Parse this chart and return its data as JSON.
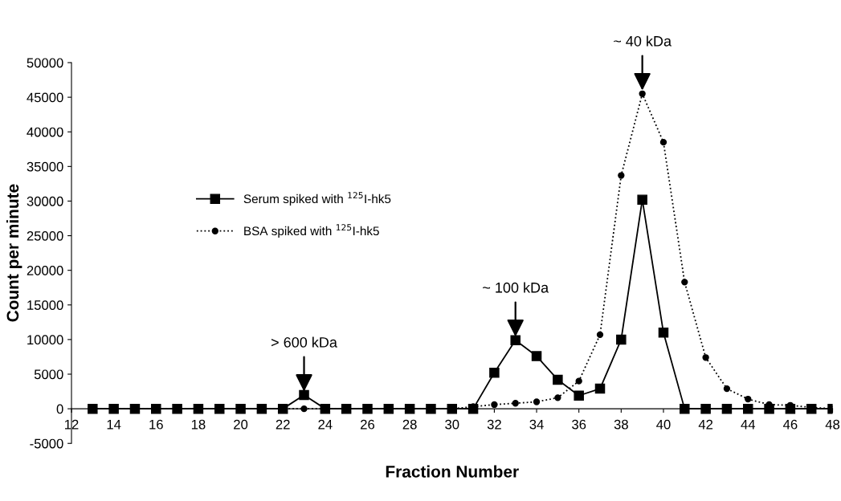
{
  "chart_data": {
    "type": "line",
    "xlabel": "Fraction Number",
    "ylabel": "Count per minute",
    "x": [
      13,
      14,
      15,
      16,
      17,
      18,
      19,
      20,
      21,
      22,
      23,
      24,
      25,
      26,
      27,
      28,
      29,
      30,
      31,
      32,
      33,
      34,
      35,
      36,
      37,
      38,
      39,
      40,
      41,
      42,
      43,
      44,
      45,
      46,
      47,
      48
    ],
    "series": [
      {
        "name": "Serum spiked with $^{125}$I-hk5",
        "color": "#000000",
        "marker": "square",
        "line_style": "solid",
        "values": [
          0,
          0,
          0,
          0,
          0,
          0,
          0,
          0,
          0,
          0,
          2000,
          0,
          0,
          0,
          0,
          0,
          0,
          0,
          0,
          5200,
          9900,
          7600,
          4200,
          1900,
          2900,
          10000,
          30200,
          11000,
          0,
          0,
          0,
          0,
          0,
          0,
          0,
          0
        ]
      },
      {
        "name": "BSA spiked with $^{125}$I-hk5",
        "color": "#000000",
        "marker": "circle",
        "line_style": "dotted",
        "values": [
          0,
          0,
          0,
          0,
          0,
          0,
          0,
          0,
          0,
          0,
          0,
          0,
          0,
          0,
          0,
          0,
          0,
          0,
          300,
          600,
          800,
          1000,
          1600,
          4000,
          10700,
          33700,
          45500,
          38500,
          18300,
          7400,
          2900,
          1400,
          600,
          500,
          200,
          0
        ]
      }
    ],
    "xlim": [
      12,
      48
    ],
    "xticks": [
      12,
      14,
      16,
      18,
      20,
      22,
      24,
      26,
      28,
      30,
      32,
      34,
      36,
      38,
      40,
      42,
      44,
      46,
      48
    ],
    "ylim": [
      -5000,
      50000
    ],
    "yticks": [
      -5000,
      0,
      5000,
      10000,
      15000,
      20000,
      25000,
      30000,
      35000,
      40000,
      45000,
      50000
    ],
    "grid": false,
    "legend": "center left",
    "annotations": [
      {
        "text": "> 600 kDa",
        "x": 23,
        "y": 2000
      },
      {
        "text": "~ 100 kDa",
        "x": 33,
        "y": 9900
      },
      {
        "text": "~ 40 kDa",
        "x": 39,
        "y": 45500
      }
    ]
  }
}
